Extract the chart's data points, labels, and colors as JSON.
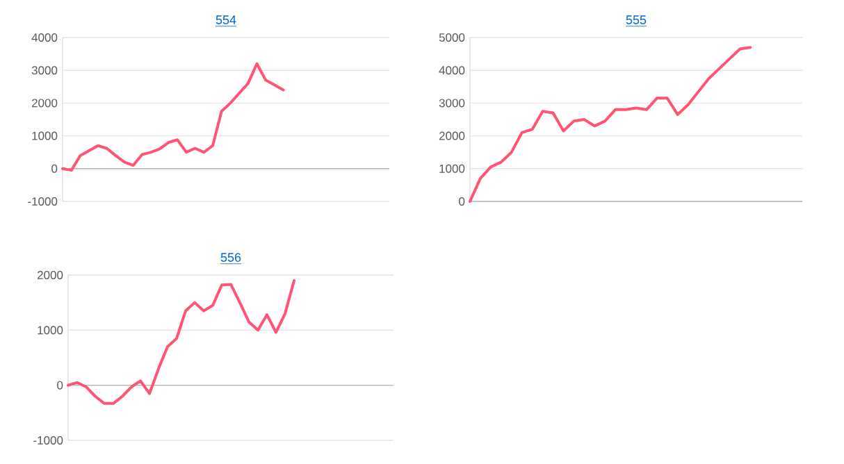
{
  "chart_data": [
    {
      "type": "line",
      "title": "554",
      "categories": [
        null,
        null,
        null,
        null,
        null,
        null,
        null,
        null,
        null,
        null,
        null,
        null,
        null,
        null,
        null,
        null,
        null,
        null,
        null,
        null,
        null,
        null,
        null,
        null,
        null,
        null,
        null,
        null,
        null,
        null,
        null,
        null,
        null,
        null,
        null,
        null,
        null,
        null
      ],
      "series": [
        {
          "color": "#ff5473",
          "values": [
            0,
            -50,
            400,
            550,
            700,
            620,
            400,
            200,
            100,
            430,
            500,
            600,
            800,
            880,
            500,
            620,
            500,
            700,
            1750,
            2000,
            2300,
            2600,
            3200,
            2700,
            2550,
            2400,
            null,
            null,
            null,
            null,
            null,
            null,
            null,
            null,
            null,
            null,
            null,
            null
          ]
        }
      ],
      "ylim": [
        -1000,
        4000
      ],
      "yticks": [
        -1000,
        0,
        1000,
        2000,
        3000,
        4000
      ],
      "grid": "y",
      "tick_labels": "y",
      "marker": "none",
      "line_style": "solid"
    },
    {
      "type": "line",
      "title": "555",
      "categories": [
        null,
        null,
        null,
        null,
        null,
        null,
        null,
        null,
        null,
        null,
        null,
        null,
        null,
        null,
        null,
        null,
        null,
        null,
        null,
        null,
        null,
        null,
        null,
        null,
        null,
        null,
        null,
        null,
        null,
        null,
        null,
        null,
        null
      ],
      "series": [
        {
          "color": "#ff5473",
          "values": [
            0,
            700,
            1050,
            1200,
            1500,
            2100,
            2200,
            2750,
            2700,
            2150,
            2450,
            2500,
            2300,
            2450,
            2800,
            2800,
            2850,
            2800,
            3150,
            3150,
            2650,
            2950,
            3350,
            3750,
            4050,
            4350,
            4650,
            4700,
            null,
            null,
            null,
            null,
            null
          ]
        }
      ],
      "ylim": [
        0,
        5000
      ],
      "yticks": [
        0,
        1000,
        2000,
        3000,
        4000,
        5000
      ],
      "grid": "y",
      "tick_labels": "y",
      "marker": "none",
      "line_style": "solid"
    },
    {
      "type": "line",
      "title": "556",
      "categories": [
        null,
        null,
        null,
        null,
        null,
        null,
        null,
        null,
        null,
        null,
        null,
        null,
        null,
        null,
        null,
        null,
        null,
        null,
        null,
        null,
        null,
        null,
        null,
        null,
        null,
        null,
        null,
        null,
        null,
        null,
        null,
        null,
        null,
        null,
        null,
        null,
        null
      ],
      "series": [
        {
          "color": "#ff5473",
          "values": [
            0,
            50,
            -30,
            -200,
            -330,
            -330,
            -200,
            -30,
            80,
            -150,
            300,
            700,
            850,
            1350,
            1500,
            1350,
            1450,
            1820,
            1830,
            1500,
            1150,
            1000,
            1280,
            960,
            1300,
            1900,
            null,
            null,
            null,
            null,
            null,
            null,
            null,
            null,
            null,
            null,
            null
          ]
        }
      ],
      "ylim": [
        -1000,
        2000
      ],
      "yticks": [
        -1000,
        0,
        1000,
        2000
      ],
      "grid": "y",
      "tick_labels": "y",
      "marker": "none",
      "line_style": "solid"
    }
  ]
}
